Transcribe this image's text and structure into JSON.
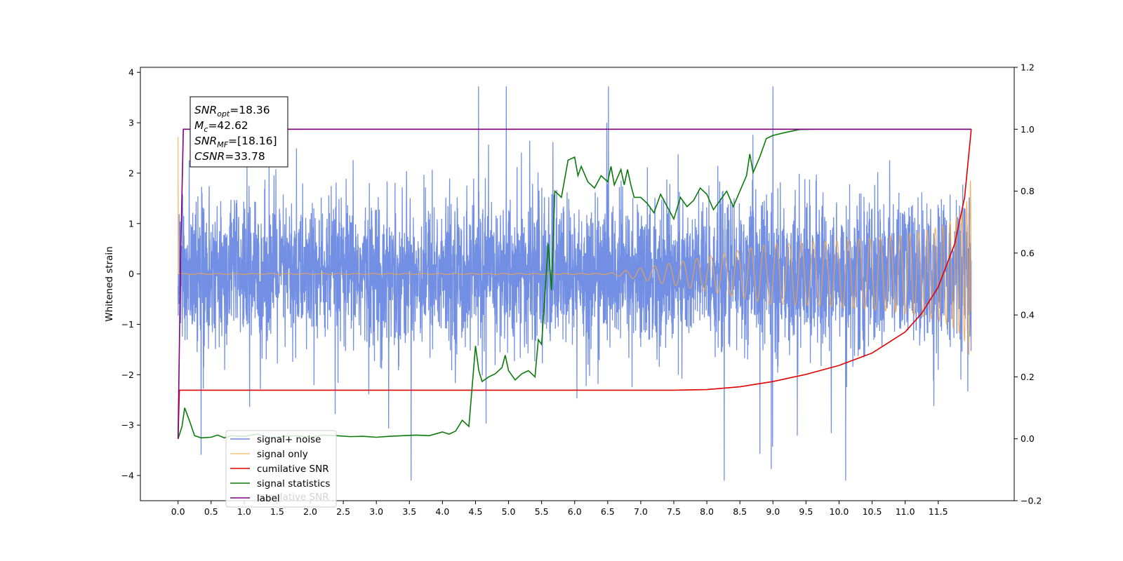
{
  "chart_data": {
    "type": "line",
    "title": "",
    "xlabel": "",
    "ylabel": "Whitened strain",
    "xlim": [
      -0.57,
      12.65
    ],
    "ylim": [
      -4.5,
      4.1
    ],
    "y2lim": [
      -0.2,
      1.2
    ],
    "x_ticks": [
      "0.0",
      "0.5",
      "1.0",
      "1.5",
      "2.0",
      "2.5",
      "3.0",
      "3.5",
      "4.0",
      "4.5",
      "5.0",
      "5.5",
      "6.0",
      "6.5",
      "7.0",
      "7.5",
      "8.0",
      "8.5",
      "9.0",
      "9.5",
      "10.0",
      "10.5",
      "11.0",
      "11.5"
    ],
    "y_ticks": [
      "−4",
      "−3",
      "−2",
      "−1",
      "0",
      "1",
      "2",
      "3",
      "4"
    ],
    "y2_ticks": [
      "−0.2",
      "0.0",
      "0.2",
      "0.4",
      "0.6",
      "0.8",
      "1.0",
      "1.2"
    ],
    "grid": false,
    "legend_position": "lower-left",
    "annotation": [
      {
        "main": "SNR",
        "sub": "opt",
        "value": "=18.36"
      },
      {
        "main": "M",
        "sub": "c",
        "value": "=42.62"
      },
      {
        "main": "SNR",
        "sub": "MF",
        "value": "=[18.16]"
      },
      {
        "main": "CSNR",
        "sub": "",
        "value": "=33.78"
      }
    ],
    "series": [
      {
        "name": "signal+ noise",
        "color": "#6b89e3",
        "axis": "left",
        "description_noise_envelope": {
          "t_start": 0.0,
          "t_end": 12.0,
          "typical_low": -1.7,
          "typical_high": 1.7,
          "max_peak": 3.72,
          "min_trough": -4.1
        }
      },
      {
        "name": "signal only",
        "color": "#f0a64a",
        "axis": "left",
        "chirp": {
          "t_start": 0.0,
          "t_end": 12.0,
          "visible_from": 7.3,
          "amplitude_end": 2.1
        }
      },
      {
        "name": "cumilative SNR",
        "color": "#e00000",
        "axis": "right",
        "x": [
          0.0,
          0.02,
          1.0,
          2.0,
          3.0,
          4.0,
          5.0,
          6.0,
          7.0,
          7.5,
          8.0,
          8.5,
          9.0,
          9.5,
          10.0,
          10.5,
          11.0,
          11.25,
          11.5,
          11.75,
          11.9,
          12.0
        ],
        "y": [
          0.0,
          0.157,
          0.157,
          0.157,
          0.157,
          0.157,
          0.157,
          0.157,
          0.157,
          0.157,
          0.159,
          0.168,
          0.185,
          0.208,
          0.237,
          0.277,
          0.345,
          0.405,
          0.49,
          0.63,
          0.78,
          1.0
        ]
      },
      {
        "name": "signal statistics",
        "color": "#0a7a0a",
        "axis": "right",
        "x": [
          0.0,
          0.06,
          0.1,
          0.17,
          0.25,
          0.35,
          0.5,
          0.6,
          0.7,
          0.8,
          1.0,
          1.2,
          1.4,
          1.6,
          1.8,
          2.0,
          2.2,
          2.4,
          2.6,
          2.8,
          3.0,
          3.2,
          3.4,
          3.6,
          3.8,
          4.0,
          4.1,
          4.2,
          4.3,
          4.4,
          4.5,
          4.55,
          4.6,
          4.7,
          4.8,
          4.9,
          4.95,
          5.0,
          5.1,
          5.2,
          5.3,
          5.4,
          5.45,
          5.5,
          5.6,
          5.65,
          5.7,
          5.8,
          5.9,
          6.0,
          6.05,
          6.1,
          6.2,
          6.3,
          6.4,
          6.5,
          6.55,
          6.6,
          6.7,
          6.75,
          6.8,
          6.85,
          6.9,
          7.0,
          7.1,
          7.2,
          7.3,
          7.4,
          7.5,
          7.6,
          7.7,
          7.8,
          7.9,
          8.0,
          8.1,
          8.2,
          8.3,
          8.4,
          8.5,
          8.6,
          8.65,
          8.7,
          8.8,
          8.9,
          9.0,
          9.2,
          9.4,
          9.6,
          10.0,
          11.0,
          11.5,
          12.0
        ],
        "y": [
          0.0,
          0.04,
          0.1,
          0.06,
          0.01,
          0.003,
          0.005,
          0.012,
          0.003,
          0.01,
          0.008,
          0.015,
          0.003,
          0.008,
          0.01,
          0.005,
          0.012,
          0.01,
          0.007,
          0.008,
          0.005,
          0.008,
          0.01,
          0.012,
          0.01,
          0.022,
          0.015,
          0.025,
          0.06,
          0.04,
          0.3,
          0.22,
          0.185,
          0.2,
          0.21,
          0.23,
          0.27,
          0.22,
          0.19,
          0.21,
          0.22,
          0.2,
          0.32,
          0.305,
          0.63,
          0.48,
          0.8,
          0.78,
          0.9,
          0.91,
          0.85,
          0.88,
          0.83,
          0.81,
          0.85,
          0.83,
          0.88,
          0.82,
          0.87,
          0.82,
          0.87,
          0.82,
          0.78,
          0.78,
          0.76,
          0.73,
          0.79,
          0.75,
          0.71,
          0.78,
          0.75,
          0.77,
          0.81,
          0.79,
          0.74,
          0.77,
          0.8,
          0.75,
          0.8,
          0.85,
          0.92,
          0.86,
          0.91,
          0.97,
          0.98,
          0.99,
          0.999,
          1.0,
          1.0,
          1.0,
          1.0,
          1.0
        ]
      },
      {
        "name": "label",
        "color": "#800080",
        "axis": "right",
        "x": [
          0.0,
          0.04,
          0.08,
          12.0
        ],
        "y": [
          0.0,
          0.6,
          1.0,
          1.0
        ]
      },
      {
        "name": "cumilative SNR",
        "color": "#e00000",
        "axis": "right",
        "note_hidden_behind_legend": true
      }
    ],
    "legend": [
      {
        "label": "signal+ noise",
        "color": "#6b89e3",
        "alpha": 1
      },
      {
        "label": "signal only",
        "color": "#f7c47a",
        "alpha": 1
      },
      {
        "label": "cumilative SNR",
        "color": "#e00000",
        "alpha": 1
      },
      {
        "label": "signal statistics",
        "color": "#0a7a0a",
        "alpha": 1
      },
      {
        "label": "label",
        "color": "#800080",
        "alpha": 1
      }
    ],
    "legend_ghost_text": "cumilative SNR"
  }
}
